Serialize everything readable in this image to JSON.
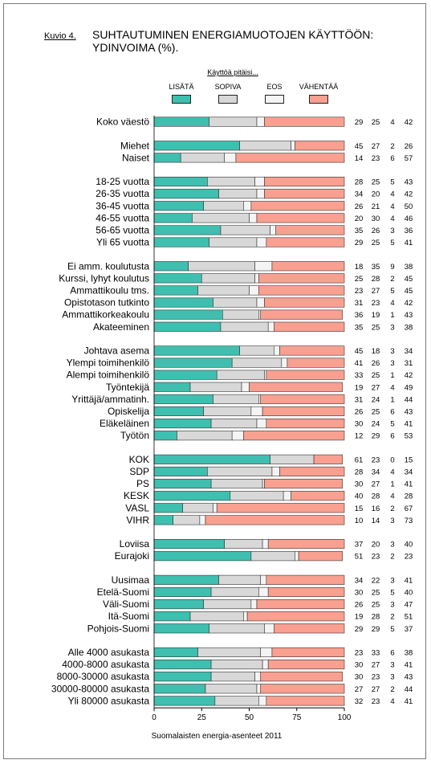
{
  "figure": {
    "label": "Kuvio 4.",
    "title": "SUHTAUTUMINEN ENERGIAMUOTOJEN KÄYTTÖÖN:",
    "subtitle": "YDINVOIMA (%).",
    "source": "Suomalaisten energia-asenteet 2011"
  },
  "legend": {
    "title": "Käyttöä pitäisi...",
    "items": [
      {
        "label": "LISÄTÄ",
        "color": "#3fbfb0"
      },
      {
        "label": "SOPIVA",
        "color": "#d8d8d8"
      },
      {
        "label": "EOS",
        "color": "#f4f4f4"
      },
      {
        "label": "VÄHENTÄÄ",
        "color": "#f9a090"
      }
    ]
  },
  "chart_data": {
    "type": "bar",
    "orientation": "horizontal",
    "stacked": true,
    "xlim": [
      0,
      100
    ],
    "xticks": [
      0,
      25,
      50,
      75,
      100
    ],
    "series_names": [
      "LISÄTÄ",
      "SOPIVA",
      "EOS",
      "VÄHENTÄÄ"
    ],
    "groups": [
      {
        "rows": [
          {
            "label": "Koko väestö",
            "values": [
              29,
              25,
              4,
              42
            ]
          }
        ]
      },
      {
        "rows": [
          {
            "label": "Miehet",
            "values": [
              45,
              27,
              2,
              26
            ]
          },
          {
            "label": "Naiset",
            "values": [
              14,
              23,
              6,
              57
            ]
          }
        ]
      },
      {
        "rows": [
          {
            "label": "18-25 vuotta",
            "values": [
              28,
              25,
              5,
              43
            ]
          },
          {
            "label": "26-35 vuotta",
            "values": [
              34,
              20,
              4,
              42
            ]
          },
          {
            "label": "36-45 vuotta",
            "values": [
              26,
              21,
              4,
              50
            ]
          },
          {
            "label": "46-55 vuotta",
            "values": [
              20,
              30,
              4,
              46
            ]
          },
          {
            "label": "56-65 vuotta",
            "values": [
              35,
              26,
              3,
              36
            ]
          },
          {
            "label": "Yli 65 vuotta",
            "values": [
              29,
              25,
              5,
              41
            ]
          }
        ]
      },
      {
        "rows": [
          {
            "label": "Ei amm. koulutusta",
            "values": [
              18,
              35,
              9,
              38
            ]
          },
          {
            "label": "Kurssi, lyhyt koulutus",
            "values": [
              25,
              28,
              2,
              45
            ]
          },
          {
            "label": "Ammattikoulu tms.",
            "values": [
              23,
              27,
              5,
              45
            ]
          },
          {
            "label": "Opistotason tutkinto",
            "values": [
              31,
              23,
              4,
              42
            ]
          },
          {
            "label": "Ammattikorkeakoulu",
            "values": [
              36,
              19,
              1,
              43
            ]
          },
          {
            "label": "Akateeminen",
            "values": [
              35,
              25,
              3,
              38
            ]
          }
        ]
      },
      {
        "rows": [
          {
            "label": "Johtava asema",
            "values": [
              45,
              18,
              3,
              34
            ]
          },
          {
            "label": "Ylempi toimihenkilö",
            "values": [
              41,
              26,
              3,
              31
            ]
          },
          {
            "label": "Alempi toimihenkilö",
            "values": [
              33,
              25,
              1,
              42
            ]
          },
          {
            "label": "Työntekijä",
            "values": [
              19,
              27,
              4,
              49
            ]
          },
          {
            "label": "Yrittäjä/ammatinh.",
            "values": [
              31,
              24,
              1,
              44
            ]
          },
          {
            "label": "Opiskelija",
            "values": [
              26,
              25,
              6,
              43
            ]
          },
          {
            "label": "Eläkeläinen",
            "values": [
              30,
              24,
              5,
              41
            ]
          },
          {
            "label": "Työtön",
            "values": [
              12,
              29,
              6,
              53
            ]
          }
        ]
      },
      {
        "rows": [
          {
            "label": "KOK",
            "values": [
              61,
              23,
              0,
              15
            ]
          },
          {
            "label": "SDP",
            "values": [
              28,
              34,
              4,
              34
            ]
          },
          {
            "label": "PS",
            "values": [
              30,
              27,
              1,
              41
            ]
          },
          {
            "label": "KESK",
            "values": [
              40,
              28,
              4,
              28
            ]
          },
          {
            "label": "VASL",
            "values": [
              15,
              16,
              2,
              67
            ]
          },
          {
            "label": "VIHR",
            "values": [
              10,
              14,
              3,
              73
            ]
          }
        ]
      },
      {
        "rows": [
          {
            "label": "Loviisa",
            "values": [
              37,
              20,
              3,
              40
            ]
          },
          {
            "label": "Eurajoki",
            "values": [
              51,
              23,
              2,
              23
            ]
          }
        ]
      },
      {
        "rows": [
          {
            "label": "Uusimaa",
            "values": [
              34,
              22,
              3,
              41
            ]
          },
          {
            "label": "Etelä-Suomi",
            "values": [
              30,
              25,
              5,
              40
            ]
          },
          {
            "label": "Väli-Suomi",
            "values": [
              26,
              25,
              3,
              47
            ]
          },
          {
            "label": "Itä-Suomi",
            "values": [
              19,
              28,
              2,
              51
            ]
          },
          {
            "label": "Pohjois-Suomi",
            "values": [
              29,
              29,
              5,
              37
            ]
          }
        ]
      },
      {
        "rows": [
          {
            "label": "Alle 4000 asukasta",
            "values": [
              23,
              33,
              6,
              38
            ]
          },
          {
            "label": "4000-8000 asukasta",
            "values": [
              30,
              27,
              3,
              41
            ]
          },
          {
            "label": "8000-30000 asukasta",
            "values": [
              30,
              23,
              3,
              43
            ]
          },
          {
            "label": "30000-80000 asukasta",
            "values": [
              27,
              27,
              2,
              44
            ]
          },
          {
            "label": "Yli 80000 asukasta",
            "values": [
              32,
              23,
              4,
              41
            ]
          }
        ]
      }
    ]
  }
}
